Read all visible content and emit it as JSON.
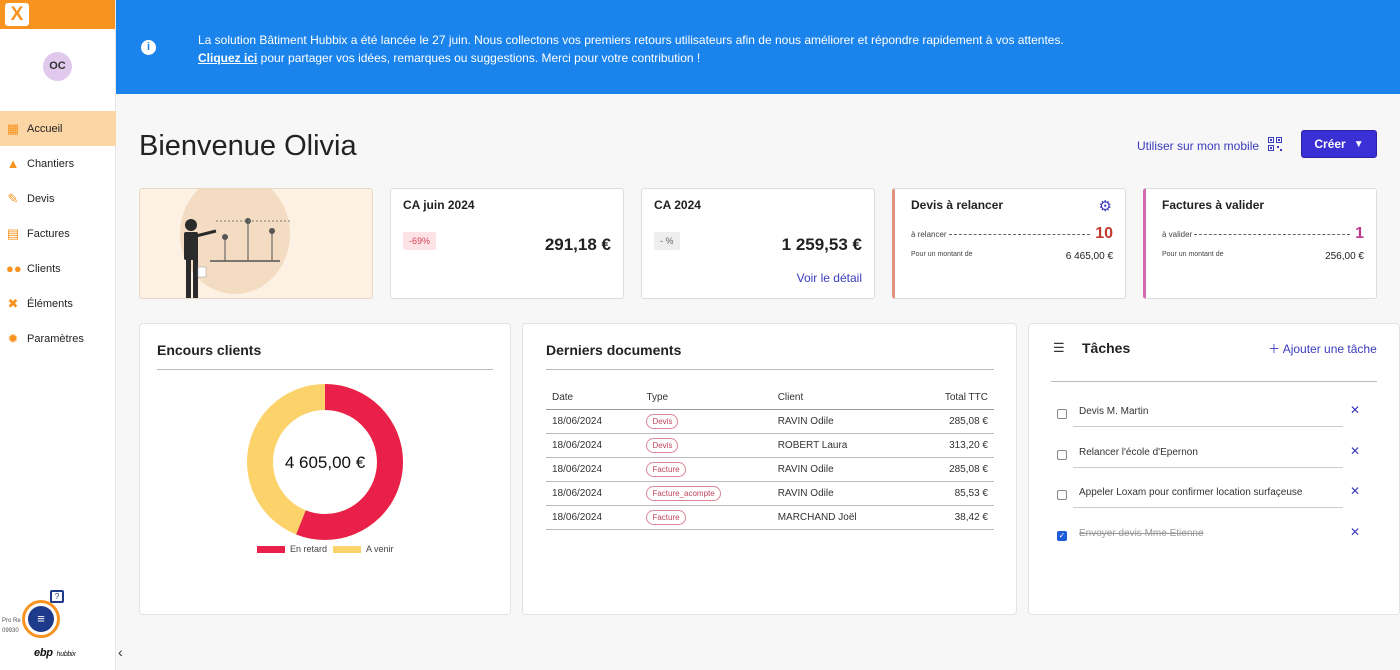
{
  "sidebar": {
    "logo": "X",
    "avatar": "OC",
    "items": [
      {
        "label": "Accueil",
        "icon": "dashboard-icon",
        "active": true
      },
      {
        "label": "Chantiers",
        "icon": "cone-icon"
      },
      {
        "label": "Devis",
        "icon": "pen-icon"
      },
      {
        "label": "Factures",
        "icon": "invoice-icon"
      },
      {
        "label": "Clients",
        "icon": "users-icon"
      },
      {
        "label": "Éléments",
        "icon": "tools-icon"
      },
      {
        "label": "Paramètres",
        "icon": "gear-icon"
      }
    ],
    "footer": {
      "pro_line1": "Pro Re",
      "pro_line2": "09930",
      "ebp": "ebp",
      "hubbix": "hubbix"
    }
  },
  "banner": {
    "text1": "La solution Bâtiment Hubbix a été lancée le 27 juin. Nous collectons vos premiers retours utilisateurs afin de nous améliorer et répondre rapidement à vos attentes.",
    "link": "Cliquez ici",
    "text2": " pour partager vos idées, remarques ou suggestions. Merci pour votre contribution !"
  },
  "header": {
    "welcome": "Bienvenue Olivia",
    "mobile_link": "Utiliser sur mon mobile",
    "create_label": "Créer"
  },
  "kpis": {
    "ca_month": {
      "title": "CA juin 2024",
      "badge": "-69%",
      "value": "291,18 €"
    },
    "ca_year": {
      "title": "CA 2024",
      "badge": "- %",
      "value": "1 259,53 €",
      "link": "Voir le détail"
    },
    "devis": {
      "title": "Devis à relancer",
      "row_label": "à relancer",
      "count": "10",
      "amount_label": "Pour un montant de",
      "amount": "6 465,00 €",
      "accent": "#c0392b"
    },
    "factures": {
      "title": "Factures à valider",
      "row_label": "à valider",
      "count": "1",
      "amount_label": "Pour un montant de",
      "amount": "256,00 €",
      "accent": "#c0398b"
    }
  },
  "encours": {
    "title": "Encours clients",
    "total": "4 605,00 €",
    "late_fraction": 0.56,
    "legend_late": "En retard",
    "legend_upcoming": "A venir",
    "color_late": "#e8204a",
    "color_upcoming": "#fbd36a"
  },
  "documents": {
    "title": "Derniers documents",
    "headers": [
      "Date",
      "Type",
      "Client",
      "Total TTC"
    ],
    "rows": [
      [
        "18/06/2024",
        "Devis",
        "RAVIN Odile",
        "285,08 €"
      ],
      [
        "18/06/2024",
        "Devis",
        "ROBERT Laura",
        "313,20 €"
      ],
      [
        "18/06/2024",
        "Facture",
        "RAVIN Odile",
        "285,08 €"
      ],
      [
        "18/06/2024",
        "Facture_acompte",
        "RAVIN Odile",
        "85,53 €"
      ],
      [
        "18/06/2024",
        "Facture",
        "MARCHAND Joël",
        "38,42 €"
      ]
    ]
  },
  "tasks": {
    "title": "Tâches",
    "add_label": "Ajouter une tâche",
    "items": [
      {
        "label": "Devis M. Martin",
        "done": false
      },
      {
        "label": "Relancer l'école d'Epernon",
        "done": false
      },
      {
        "label": "Appeler Loxam pour confirmer location surfaçeuse",
        "done": false
      },
      {
        "label": "Envoyer devis Mme Etienne",
        "done": true
      }
    ]
  }
}
